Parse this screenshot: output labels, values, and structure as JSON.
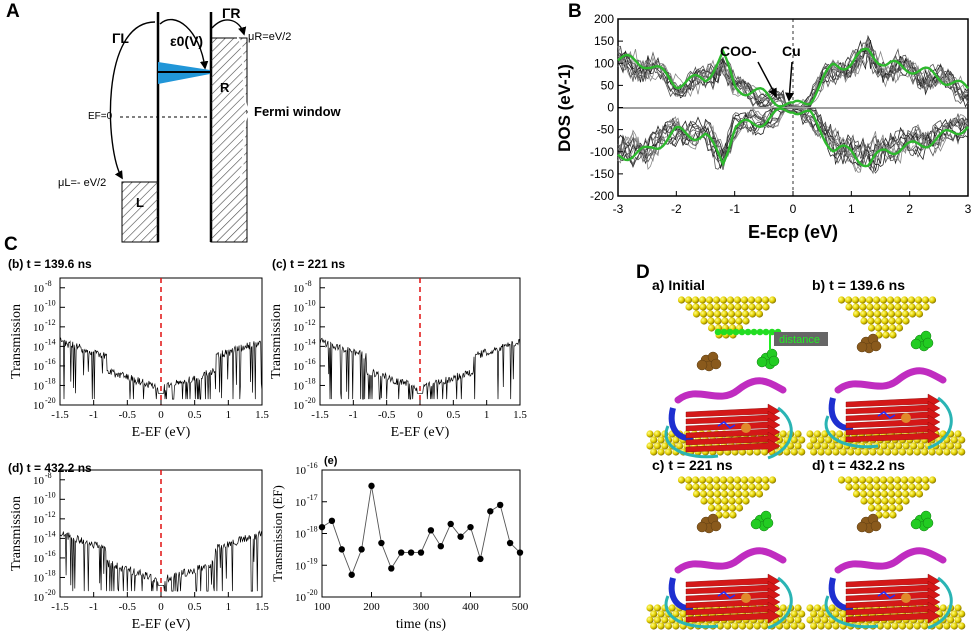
{
  "panels": {
    "a": "A",
    "b": "B",
    "c": "C",
    "d": "D"
  },
  "panel_a": {
    "gamma_l": "ΓL",
    "gamma_r": "ΓR",
    "eps": "ε0(V)",
    "mu_r": "μR=eV/2",
    "mu_l": "μL=- eV/2",
    "ef": "EF=0",
    "l": "L",
    "r": "R",
    "fermi_window": "Fermi window"
  },
  "panel_b": {
    "ylabel": "DOS (eV-1)",
    "xlabel": "E-Ecp (eV)",
    "ann_coo": "COO-",
    "ann_cu": "Cu",
    "yticks": [
      "200",
      "150",
      "100",
      "50",
      "0",
      "-50",
      "-100",
      "-150",
      "-200"
    ],
    "xticks": [
      "-3",
      "-2",
      "-1",
      "0",
      "1",
      "2",
      "3"
    ]
  },
  "panel_c": {
    "subplots": [
      {
        "title": "(b) t = 139.6 ns"
      },
      {
        "title": "(c) t = 221 ns"
      },
      {
        "title": "(d) t = 432.2 ns"
      }
    ],
    "ylabel": "Transmission",
    "xlabel": "E-EF (eV)",
    "xticks": [
      "-1.5",
      "-1",
      "-0.5",
      "0",
      "0.5",
      "1",
      "1.5"
    ],
    "yexp": [
      "-8",
      "-10",
      "-12",
      "-14",
      "-16",
      "-18",
      "-20"
    ],
    "e_title": "(e)",
    "e_ylabel": "Transmission (EF)",
    "e_xlabel": "time (ns)",
    "e_xticks": [
      "100",
      "200",
      "300",
      "400",
      "500"
    ],
    "e_yexp": [
      "-16",
      "-17",
      "-18",
      "-19",
      "-20"
    ]
  },
  "panel_d": {
    "a": "a) Initial",
    "b": "b) t = 139.6 ns",
    "c": "c) t = 221 ns",
    "d": "d) t = 432.2 ns",
    "distance": "distance"
  },
  "chart_data": [
    {
      "type": "line",
      "title": "",
      "xlabel": "E-Ecp (eV)",
      "ylabel": "DOS (eV-1)",
      "xlim": [
        -3,
        3
      ],
      "ylim": [
        -200,
        200
      ],
      "series": [
        {
          "name": "highlighted (green)",
          "x": [
            -3,
            -2.5,
            -2,
            -1.5,
            -1.2,
            -1,
            -0.5,
            -0.2,
            0,
            0.3,
            0.7,
            1,
            1.3,
            1.6,
            2,
            2.5,
            3
          ],
          "values": [
            110,
            100,
            55,
            65,
            120,
            45,
            30,
            12,
            0,
            20,
            95,
            100,
            130,
            95,
            90,
            70,
            40
          ]
        }
      ],
      "annotations": [
        "COO-",
        "Cu"
      ]
    },
    {
      "type": "scatter",
      "title": "(e)",
      "xlabel": "time (ns)",
      "ylabel": "Transmission (EF)",
      "xlim": [
        100,
        500
      ],
      "ylim_log10": [
        -20,
        -16
      ],
      "series": [
        {
          "name": "Transmission at EF",
          "x": [
            100,
            120,
            140,
            160,
            180,
            200,
            220,
            240,
            260,
            280,
            300,
            320,
            340,
            360,
            380,
            400,
            420,
            440,
            460,
            480,
            500
          ],
          "log10_values": [
            -17.8,
            -17.6,
            -18.5,
            -19.3,
            -18.5,
            -16.5,
            -18.3,
            -19.1,
            -18.6,
            -18.6,
            -18.6,
            -17.9,
            -18.4,
            -17.7,
            -18.1,
            -17.8,
            -18.8,
            -17.3,
            -17.1,
            -18.3,
            -18.6
          ]
        }
      ]
    }
  ]
}
